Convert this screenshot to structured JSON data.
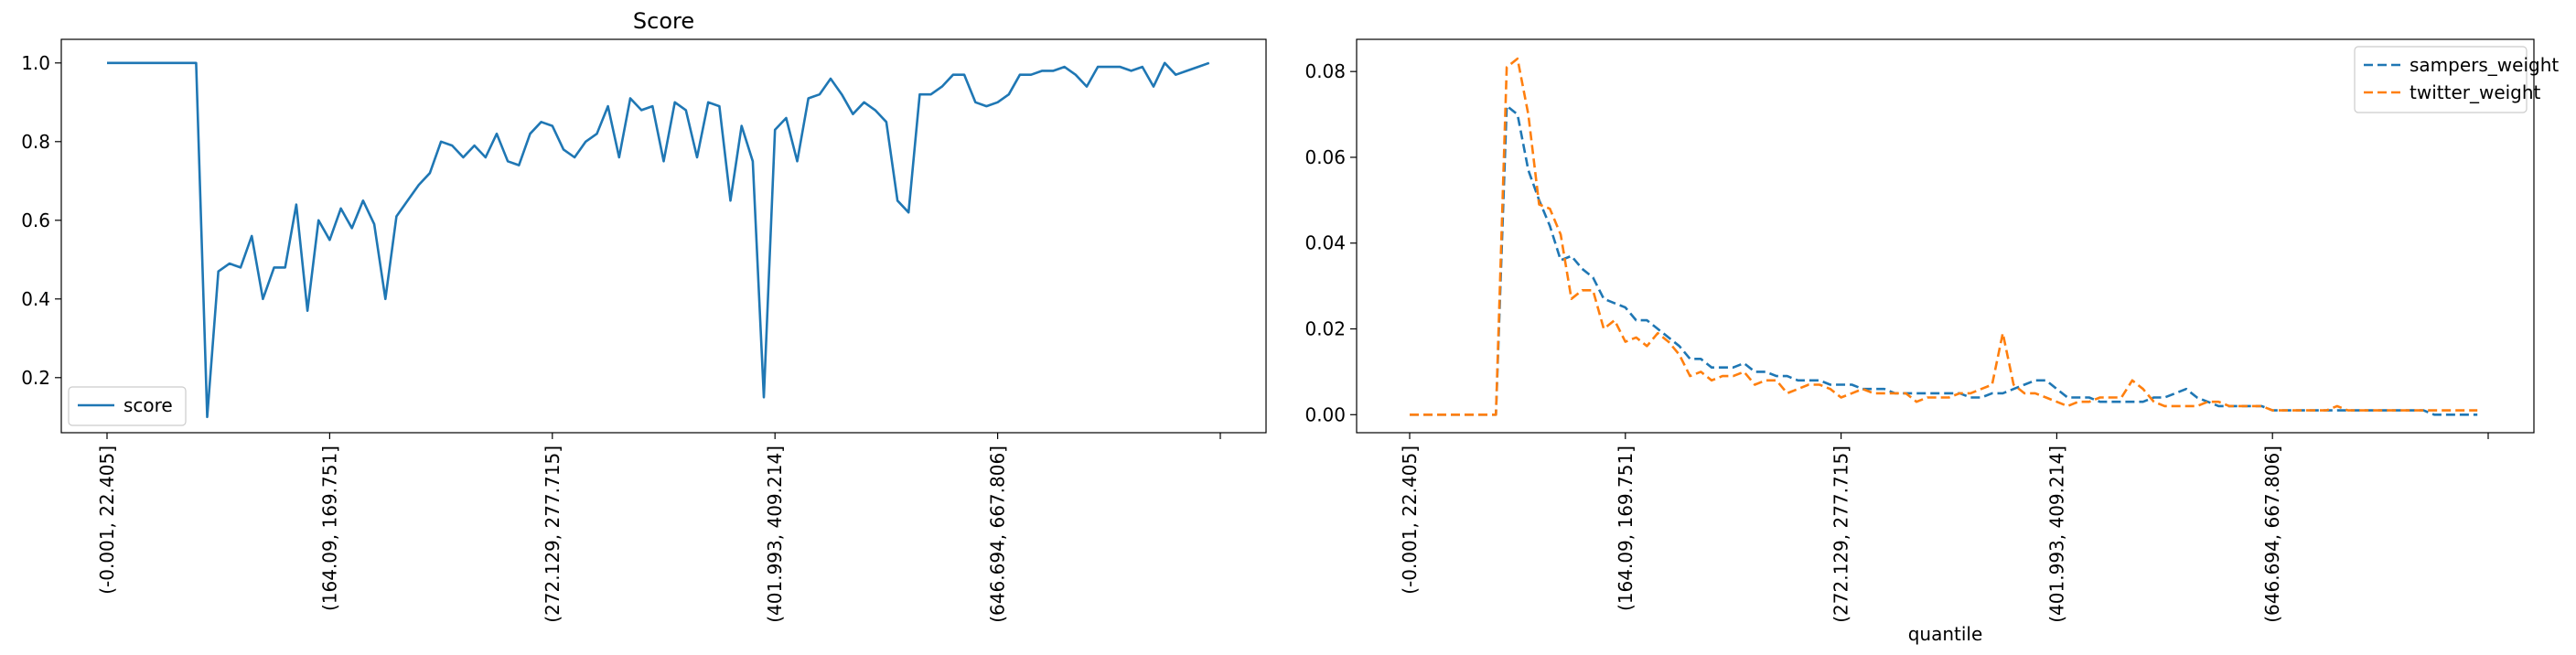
{
  "chart_data": [
    {
      "type": "line",
      "title": "Score",
      "xlabel": "",
      "ylabel": "",
      "ylim": [
        0.06,
        1.06
      ],
      "yticks": [
        "0.2",
        "0.4",
        "0.6",
        "0.8",
        "1.0"
      ],
      "ytick_values": [
        0.2,
        0.4,
        0.6,
        0.8,
        1.0
      ],
      "xticks": [
        "(-0.001, 22.405]",
        "(164.09, 169.751]",
        "(272.129, 277.715]",
        "(401.993, 409.214]",
        "(646.694, 667.806]",
        ""
      ],
      "xtick_index": [
        0,
        20,
        40,
        60,
        80,
        100
      ],
      "n_points": 100,
      "legend": "lower-left",
      "grid": false,
      "series": [
        {
          "name": "score",
          "color": "#1f77b4",
          "dash": "solid",
          "values": [
            1.0,
            1.0,
            1.0,
            1.0,
            1.0,
            1.0,
            1.0,
            1.0,
            1.0,
            0.1,
            0.47,
            0.49,
            0.48,
            0.56,
            0.4,
            0.48,
            0.48,
            0.64,
            0.37,
            0.6,
            0.55,
            0.63,
            0.58,
            0.65,
            0.59,
            0.4,
            0.61,
            0.65,
            0.69,
            0.72,
            0.8,
            0.79,
            0.76,
            0.79,
            0.76,
            0.82,
            0.75,
            0.74,
            0.82,
            0.85,
            0.84,
            0.78,
            0.76,
            0.8,
            0.82,
            0.89,
            0.76,
            0.91,
            0.88,
            0.89,
            0.75,
            0.9,
            0.88,
            0.76,
            0.9,
            0.89,
            0.65,
            0.84,
            0.75,
            0.15,
            0.83,
            0.86,
            0.75,
            0.91,
            0.92,
            0.96,
            0.92,
            0.87,
            0.9,
            0.88,
            0.85,
            0.65,
            0.62,
            0.92,
            0.92,
            0.94,
            0.97,
            0.97,
            0.9,
            0.89,
            0.9,
            0.92,
            0.97,
            0.97,
            0.98,
            0.98,
            0.99,
            0.97,
            0.94,
            0.99,
            0.99,
            0.99,
            0.98,
            0.99,
            0.94,
            1.0,
            0.97,
            0.98,
            0.99,
            1.0
          ]
        }
      ]
    },
    {
      "type": "line",
      "title": "",
      "xlabel": "quantile",
      "ylabel": "",
      "ylim": [
        -0.0042,
        0.0875
      ],
      "yticks": [
        "0.00",
        "0.02",
        "0.04",
        "0.06",
        "0.08"
      ],
      "ytick_values": [
        0.0,
        0.02,
        0.04,
        0.06,
        0.08
      ],
      "xticks": [
        "(-0.001, 22.405]",
        "(164.09, 169.751]",
        "(272.129, 277.715]",
        "(401.993, 409.214]",
        "(646.694, 667.806]",
        ""
      ],
      "xtick_index": [
        0,
        20,
        40,
        60,
        80,
        100
      ],
      "n_points": 100,
      "legend": "top-right",
      "grid": false,
      "series": [
        {
          "name": "sampers_weight",
          "color": "#1f77b4",
          "dash": "dashed",
          "values": [
            0,
            0,
            0,
            0,
            0,
            0,
            0,
            0,
            0,
            0.072,
            0.07,
            0.057,
            0.05,
            0.044,
            0.036,
            0.037,
            0.034,
            0.032,
            0.027,
            0.026,
            0.025,
            0.022,
            0.022,
            0.02,
            0.018,
            0.016,
            0.013,
            0.013,
            0.011,
            0.011,
            0.011,
            0.012,
            0.01,
            0.01,
            0.009,
            0.009,
            0.008,
            0.008,
            0.008,
            0.007,
            0.007,
            0.007,
            0.006,
            0.006,
            0.006,
            0.005,
            0.005,
            0.005,
            0.005,
            0.005,
            0.005,
            0.005,
            0.004,
            0.004,
            0.005,
            0.005,
            0.006,
            0.007,
            0.008,
            0.008,
            0.006,
            0.004,
            0.004,
            0.004,
            0.003,
            0.003,
            0.003,
            0.003,
            0.003,
            0.004,
            0.004,
            0.005,
            0.006,
            0.004,
            0.003,
            0.002,
            0.002,
            0.002,
            0.002,
            0.002,
            0.001,
            0.001,
            0.001,
            0.001,
            0.001,
            0.001,
            0.001,
            0.001,
            0.001,
            0.001,
            0.001,
            0.001,
            0.001,
            0.001,
            0.001,
            0.0,
            0.0,
            0.0,
            0.0,
            0.0
          ]
        },
        {
          "name": "twitter_weight",
          "color": "#ff7f0e",
          "dash": "dashed",
          "values": [
            0,
            0,
            0,
            0,
            0,
            0,
            0,
            0,
            0,
            0.081,
            0.083,
            0.07,
            0.049,
            0.048,
            0.042,
            0.027,
            0.029,
            0.029,
            0.02,
            0.022,
            0.017,
            0.018,
            0.016,
            0.019,
            0.017,
            0.014,
            0.009,
            0.01,
            0.008,
            0.009,
            0.009,
            0.01,
            0.007,
            0.008,
            0.008,
            0.005,
            0.006,
            0.007,
            0.007,
            0.006,
            0.004,
            0.005,
            0.006,
            0.005,
            0.005,
            0.005,
            0.005,
            0.003,
            0.004,
            0.004,
            0.004,
            0.005,
            0.005,
            0.006,
            0.007,
            0.019,
            0.007,
            0.005,
            0.005,
            0.004,
            0.003,
            0.002,
            0.003,
            0.003,
            0.004,
            0.004,
            0.004,
            0.008,
            0.006,
            0.003,
            0.002,
            0.002,
            0.002,
            0.002,
            0.003,
            0.003,
            0.002,
            0.002,
            0.002,
            0.002,
            0.001,
            0.001,
            0.001,
            0.001,
            0.001,
            0.001,
            0.002,
            0.001,
            0.001,
            0.001,
            0.001,
            0.001,
            0.001,
            0.001,
            0.001,
            0.001,
            0.001,
            0.001,
            0.001,
            0.001
          ]
        }
      ]
    }
  ]
}
